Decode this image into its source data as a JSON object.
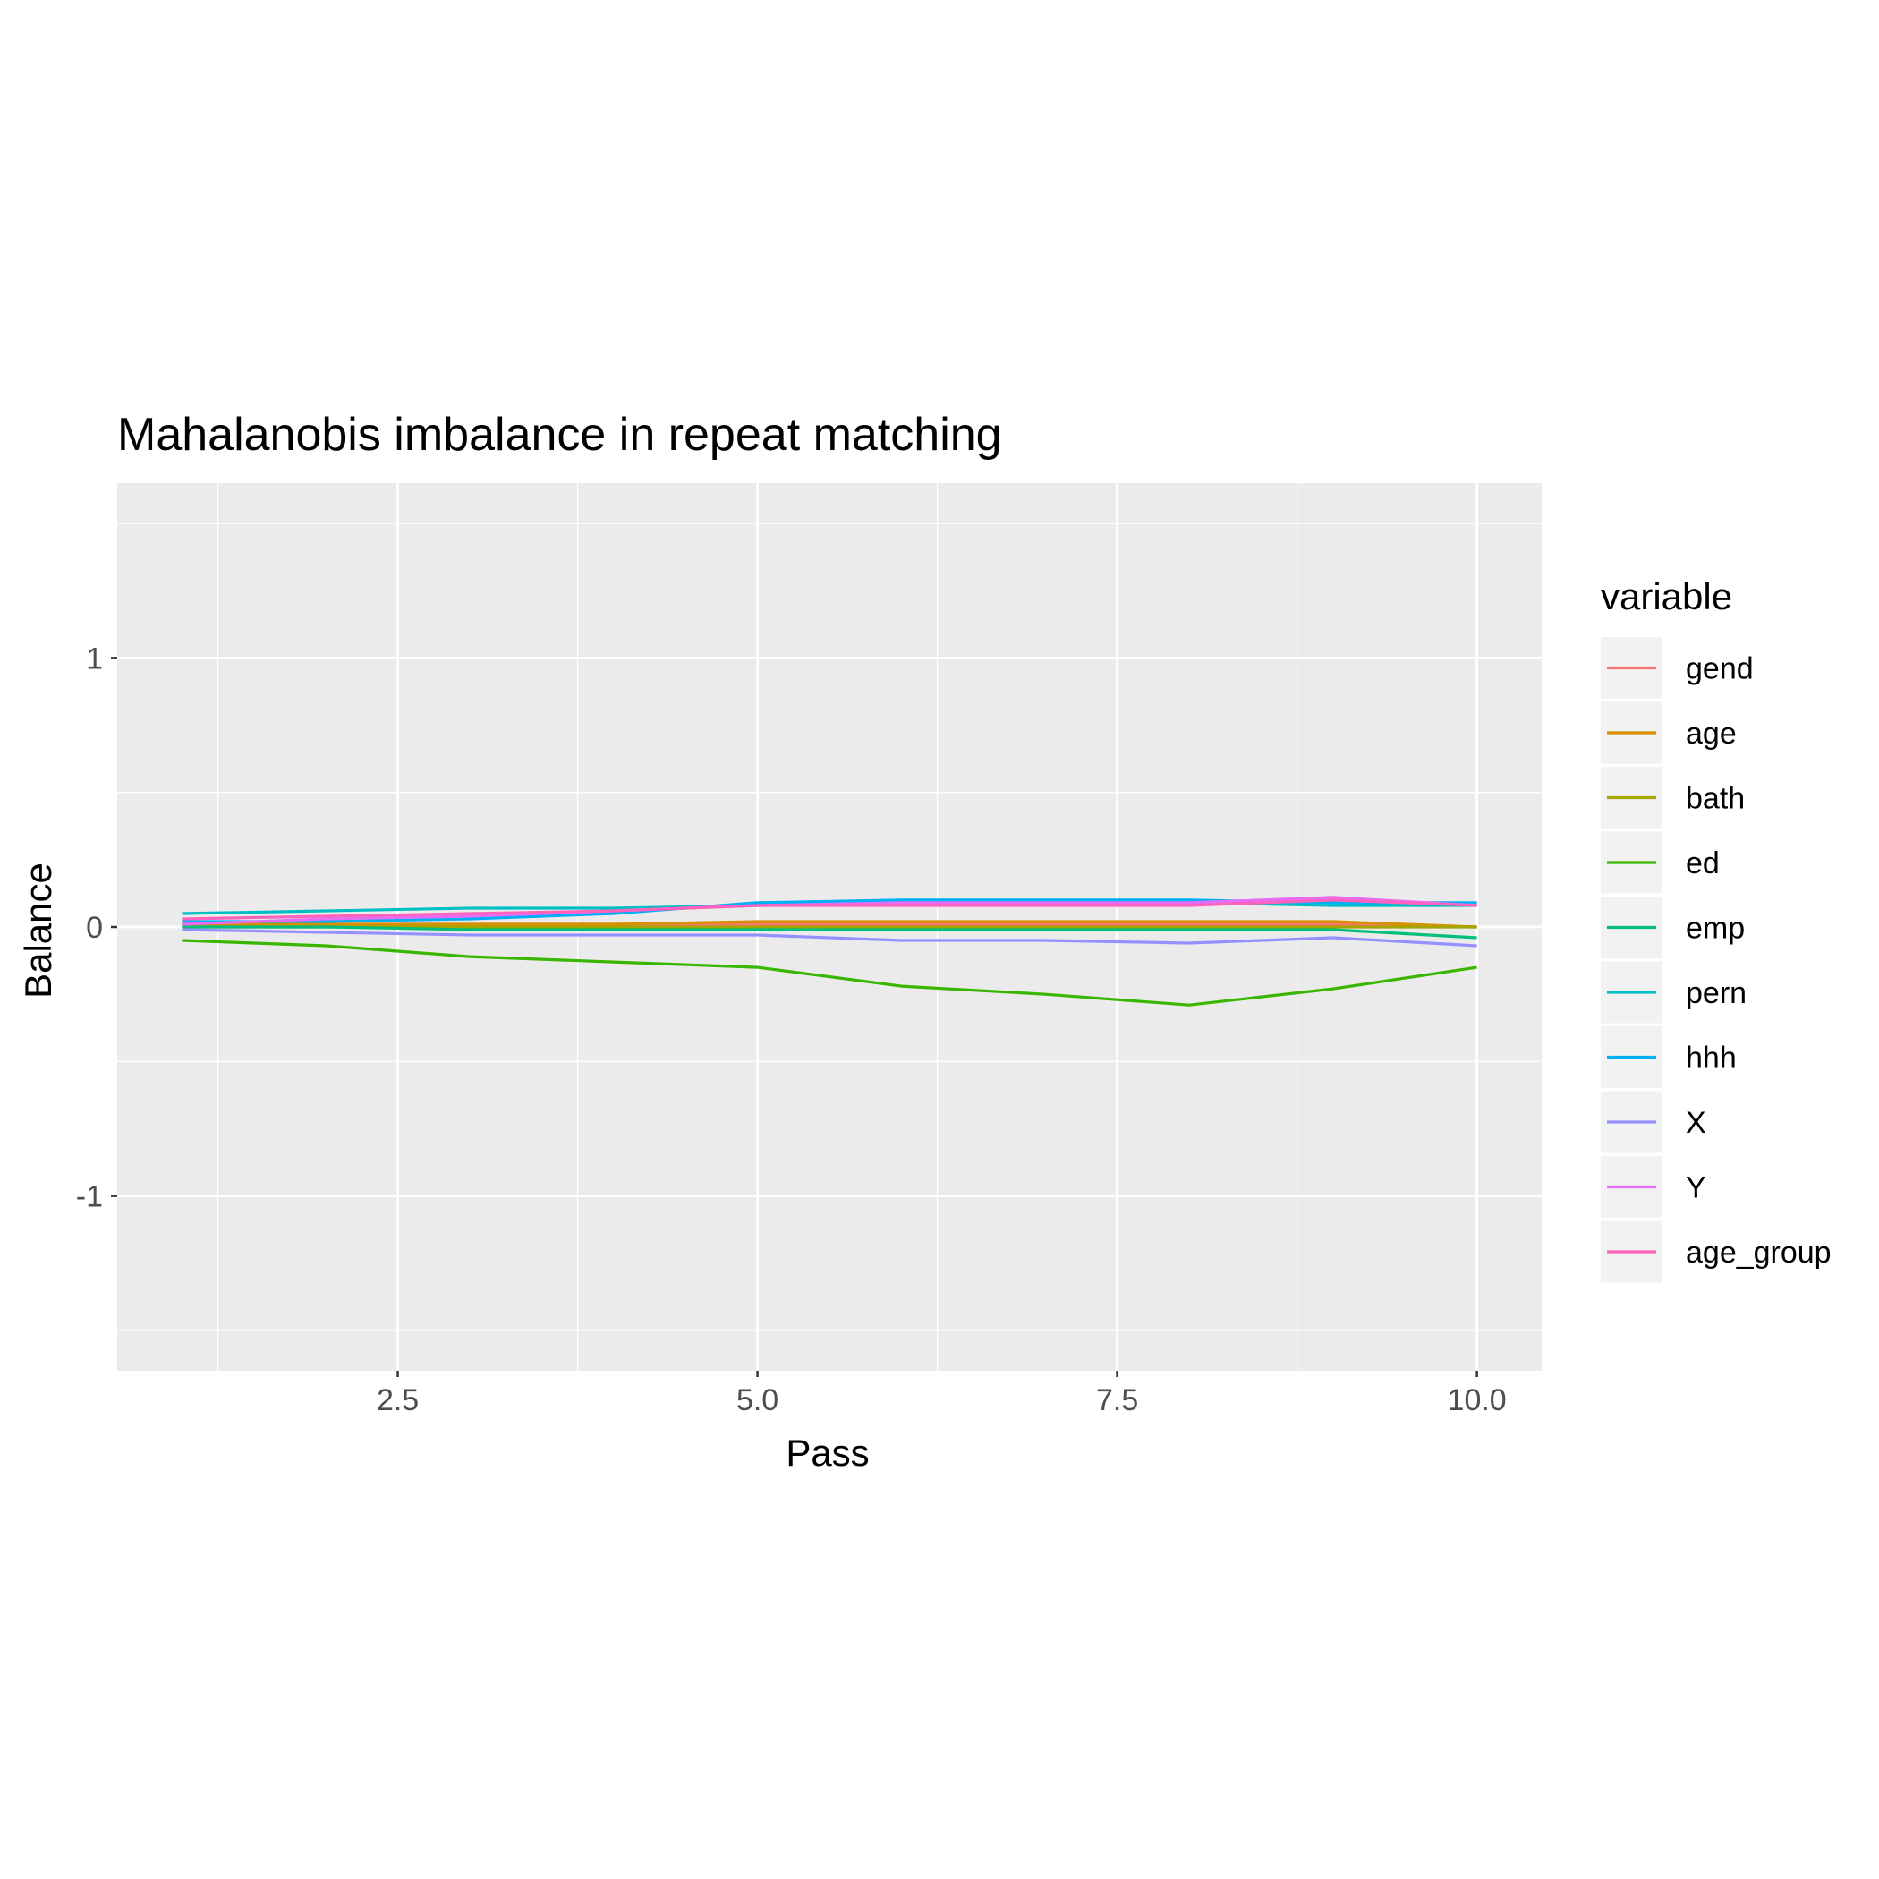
{
  "chart_data": {
    "type": "line",
    "title": "Mahalanobis imbalance in repeat matching",
    "xlabel": "Pass",
    "ylabel": "Balance",
    "xlim": [
      0.55,
      10.45
    ],
    "ylim": [
      -1.65,
      1.65
    ],
    "x_ticks": [
      2.5,
      5.0,
      7.5,
      10.0
    ],
    "x_tick_labels": [
      "2.5",
      "5.0",
      "7.5",
      "10.0"
    ],
    "x_minor_ticks": [
      1.25,
      3.75,
      6.25,
      8.75
    ],
    "y_ticks": [
      -1,
      0,
      1
    ],
    "y_tick_labels": [
      "-1",
      "0",
      "1"
    ],
    "y_minor_ticks": [
      -1.5,
      -0.5,
      0.5,
      1.5
    ],
    "grid": true,
    "panel_background": "#ebebeb",
    "legend": {
      "title": "variable",
      "position": "right"
    },
    "x": [
      1,
      2,
      3,
      4,
      5,
      6,
      7,
      8,
      9,
      10
    ],
    "series": [
      {
        "name": "gend",
        "color": "#F8766D",
        "values": [
          0.01,
          0.01,
          0.01,
          0.01,
          0.01,
          0.01,
          0.01,
          0.01,
          0.01,
          0.0
        ]
      },
      {
        "name": "age",
        "color": "#D89000",
        "values": [
          0.01,
          0.01,
          0.01,
          0.01,
          0.02,
          0.02,
          0.02,
          0.02,
          0.02,
          0.0
        ]
      },
      {
        "name": "bath",
        "color": "#A3A500",
        "values": [
          0.0,
          0.0,
          0.0,
          0.0,
          0.0,
          0.0,
          0.0,
          0.0,
          0.0,
          0.0
        ]
      },
      {
        "name": "ed",
        "color": "#39B600",
        "values": [
          -0.05,
          -0.07,
          -0.11,
          -0.13,
          -0.15,
          -0.22,
          -0.25,
          -0.29,
          -0.23,
          -0.15
        ]
      },
      {
        "name": "emp",
        "color": "#00BF7D",
        "values": [
          0.0,
          0.0,
          -0.01,
          -0.01,
          -0.01,
          -0.01,
          -0.01,
          -0.01,
          -0.01,
          -0.04
        ]
      },
      {
        "name": "pern",
        "color": "#00BFC4",
        "values": [
          0.05,
          0.06,
          0.07,
          0.07,
          0.08,
          0.09,
          0.09,
          0.09,
          0.08,
          0.08
        ]
      },
      {
        "name": "hhh",
        "color": "#00B0F6",
        "values": [
          0.02,
          0.02,
          0.03,
          0.05,
          0.09,
          0.1,
          0.1,
          0.1,
          0.09,
          0.09
        ]
      },
      {
        "name": "X",
        "color": "#9590FF",
        "values": [
          -0.01,
          -0.02,
          -0.03,
          -0.03,
          -0.03,
          -0.05,
          -0.05,
          -0.06,
          -0.04,
          -0.07
        ]
      },
      {
        "name": "Y",
        "color": "#E76BF3",
        "values": [
          0.01,
          0.03,
          0.04,
          0.06,
          0.08,
          0.09,
          0.09,
          0.09,
          0.11,
          0.08
        ]
      },
      {
        "name": "age_group",
        "color": "#FF62BC",
        "values": [
          0.03,
          0.04,
          0.05,
          0.06,
          0.08,
          0.08,
          0.08,
          0.08,
          0.1,
          0.08
        ]
      }
    ]
  }
}
